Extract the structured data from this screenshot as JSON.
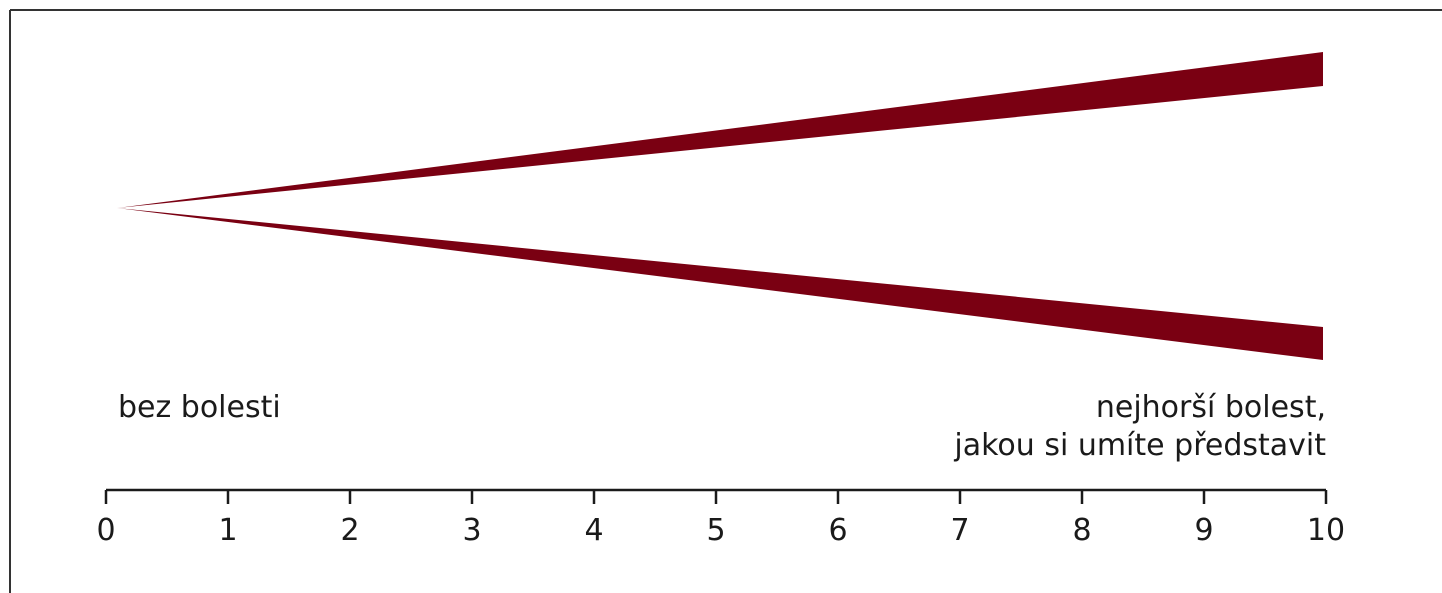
{
  "scale": {
    "min": 0,
    "max": 10,
    "ticks": [
      "0",
      "1",
      "2",
      "3",
      "4",
      "5",
      "6",
      "7",
      "8",
      "9",
      "10"
    ]
  },
  "labels": {
    "left": "bez bolesti",
    "right_line1": "nejhorší bolest,",
    "right_line2": "jakou si umíte představit"
  },
  "colors": {
    "wedge": "#7a0012",
    "frame": "#333333",
    "axis": "#1a1a1a"
  }
}
